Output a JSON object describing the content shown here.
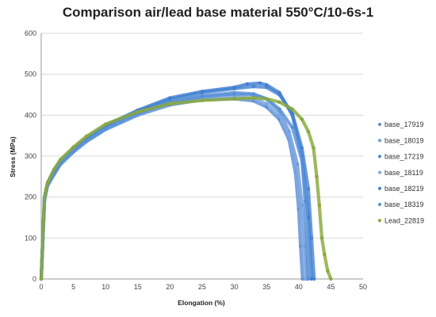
{
  "chart_data": {
    "type": "scatter",
    "title": "Comparison air/lead base material 550°C/10-6s-1",
    "xlabel": "Elongation (%)",
    "ylabel": "Stress (MPa)",
    "xlim": [
      0,
      50
    ],
    "ylim": [
      0,
      600
    ],
    "xticks": [
      0,
      5,
      10,
      15,
      20,
      25,
      30,
      35,
      40,
      45,
      50
    ],
    "yticks": [
      0,
      100,
      200,
      300,
      400,
      500,
      600
    ],
    "grid": "horizontal",
    "legend_position": "right",
    "series": [
      {
        "name": "base_17919",
        "color": "#5b8fd6",
        "x": [
          0,
          0.3,
          0.5,
          0.8,
          1,
          2,
          3,
          5,
          7,
          10,
          15,
          20,
          25,
          30,
          33,
          35,
          37,
          38.5,
          39.5,
          40,
          40.3,
          40.6
        ],
        "y": [
          0,
          110,
          190,
          215,
          228,
          255,
          280,
          310,
          335,
          365,
          400,
          425,
          438,
          440,
          435,
          420,
          390,
          340,
          260,
          170,
          80,
          0
        ]
      },
      {
        "name": "base_18019",
        "color": "#6c9bdb",
        "x": [
          0,
          0.3,
          0.5,
          0.8,
          1,
          2,
          3,
          5,
          7,
          10,
          15,
          20,
          25,
          30,
          33,
          35,
          37,
          38.5,
          39.8,
          40.5,
          41,
          41.3
        ],
        "y": [
          0,
          115,
          195,
          218,
          230,
          258,
          283,
          313,
          338,
          368,
          405,
          432,
          447,
          455,
          452,
          440,
          410,
          360,
          280,
          180,
          80,
          0
        ]
      },
      {
        "name": "base_17219",
        "color": "#4a86d2",
        "x": [
          0,
          0.3,
          0.5,
          0.8,
          1,
          2,
          3,
          5,
          7,
          10,
          15,
          20,
          25,
          30,
          33,
          35,
          37,
          39,
          40.5,
          41.5,
          42,
          42.4
        ],
        "y": [
          0,
          118,
          198,
          220,
          232,
          262,
          286,
          316,
          342,
          372,
          410,
          438,
          455,
          465,
          470,
          468,
          450,
          405,
          320,
          220,
          100,
          0
        ]
      },
      {
        "name": "base_18119",
        "color": "#7aa6e0",
        "x": [
          0,
          0.3,
          0.5,
          0.8,
          1,
          2,
          3,
          5,
          7,
          10,
          15,
          20,
          25,
          30,
          33,
          35,
          37,
          38.5,
          39.5,
          40.2,
          40.6,
          41
        ],
        "y": [
          0,
          112,
          192,
          216,
          229,
          256,
          281,
          311,
          336,
          366,
          402,
          428,
          442,
          446,
          440,
          428,
          400,
          350,
          270,
          180,
          80,
          0
        ]
      },
      {
        "name": "base_18219",
        "color": "#3f7fcf",
        "x": [
          0,
          0.3,
          0.5,
          0.8,
          1,
          2,
          3,
          5,
          7,
          10,
          15,
          20,
          25,
          30,
          32,
          34,
          35,
          37,
          39,
          40.5,
          41.5,
          42
        ],
        "y": [
          0,
          120,
          200,
          222,
          234,
          264,
          288,
          318,
          344,
          375,
          412,
          442,
          458,
          468,
          476,
          478,
          474,
          455,
          400,
          300,
          150,
          0
        ]
      },
      {
        "name": "base_18319",
        "color": "#5890d8",
        "x": [
          0,
          0.3,
          0.5,
          0.8,
          1,
          2,
          3,
          5,
          7,
          10,
          15,
          20,
          25,
          30,
          33,
          35,
          37,
          39,
          40.5,
          41,
          41.5
        ],
        "y": [
          0,
          114,
          194,
          217,
          230,
          257,
          282,
          312,
          337,
          367,
          404,
          430,
          446,
          452,
          450,
          440,
          415,
          370,
          290,
          190,
          0
        ]
      },
      {
        "name": "Lead_22819",
        "color": "#8aa83c",
        "x": [
          0,
          0.3,
          0.5,
          0.8,
          1,
          2,
          3,
          5,
          7,
          10,
          15,
          20,
          25,
          30,
          33,
          35,
          37,
          39,
          40.5,
          41.5,
          42.3,
          42.8,
          43.2,
          43.6,
          44,
          44.5,
          45
        ],
        "y": [
          0,
          120,
          200,
          222,
          236,
          268,
          292,
          322,
          348,
          378,
          408,
          428,
          436,
          440,
          442,
          440,
          432,
          415,
          390,
          360,
          320,
          250,
          180,
          100,
          60,
          20,
          0
        ]
      }
    ]
  }
}
